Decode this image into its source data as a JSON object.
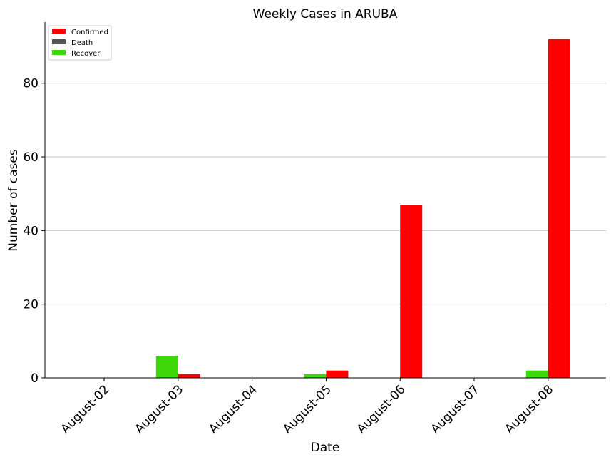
{
  "chart_data": {
    "type": "bar",
    "title": "Weekly Cases in ARUBA",
    "xlabel": "Date",
    "ylabel": "Number of cases",
    "categories": [
      "August-02",
      "August-03",
      "August-04",
      "August-05",
      "August-06",
      "August-07",
      "August-08"
    ],
    "series": [
      {
        "name": "Recover",
        "color": "#3ed80a",
        "values": [
          0,
          6,
          0,
          1,
          0,
          0,
          2
        ]
      },
      {
        "name": "Confirmed",
        "color": "#ff0000",
        "values": [
          0,
          1,
          0,
          2,
          47,
          0,
          92
        ]
      },
      {
        "name": "Death",
        "color": "#555555",
        "values": [
          0,
          0,
          0,
          0,
          0,
          0,
          0
        ]
      }
    ],
    "legend_order": [
      "Confirmed",
      "Death",
      "Recover"
    ],
    "legend_position": "top-left",
    "ylim": [
      0,
      96.6
    ],
    "yticks": [
      0,
      20,
      40,
      60,
      80
    ],
    "grid": "y",
    "xtick_rotation": -45
  }
}
